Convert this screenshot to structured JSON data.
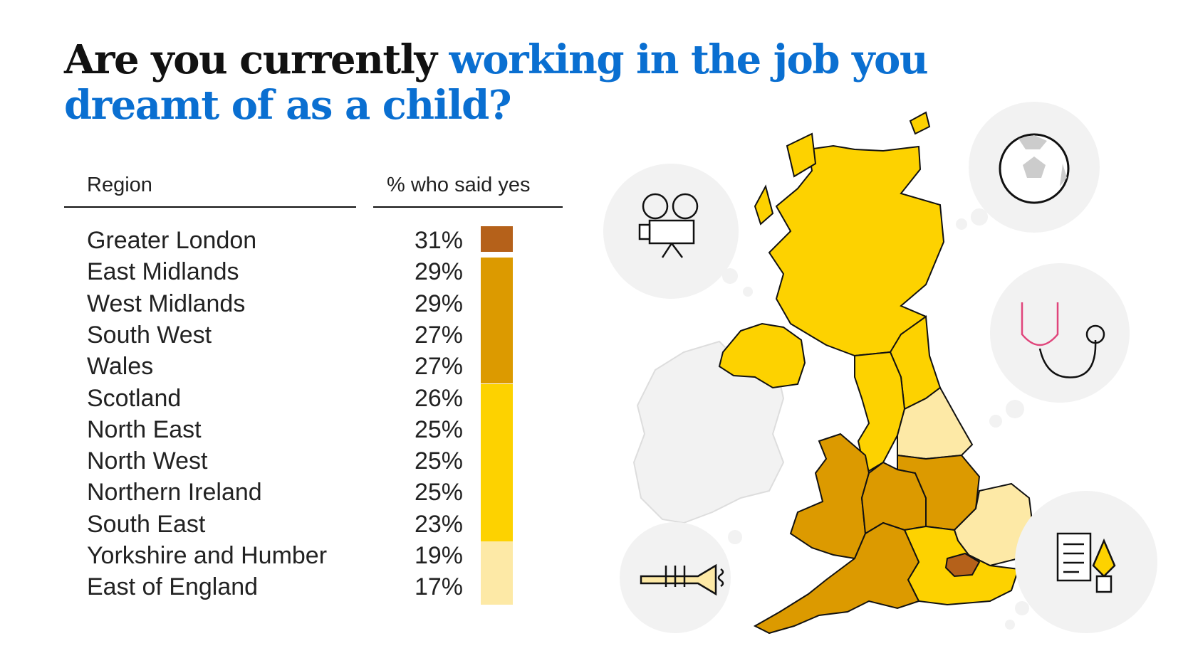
{
  "title": {
    "plain": "Are you currently",
    "highlight": "working in the job you dreamt of as a child?"
  },
  "table": {
    "col_region": "Region",
    "col_pct": "% who said yes"
  },
  "colors": {
    "band_31": "#b5611a",
    "band_27_29": "#dc9a00",
    "band_23_26": "#fdd200",
    "band_17_19": "#fde9a6",
    "title_accent": "#0a6fd1",
    "neighbour_land": "#f2f2f2"
  },
  "icons": [
    "film-projector-icon",
    "football-icon",
    "stethoscope-icon",
    "trumpet-icon",
    "scroll-and-pen-icon"
  ],
  "chart_data": {
    "type": "table",
    "columns": [
      "Region",
      "% who said yes"
    ],
    "rows": [
      {
        "region": "Greater London",
        "pct": "31%",
        "value": 31
      },
      {
        "region": "East Midlands",
        "pct": "29%",
        "value": 29
      },
      {
        "region": "West Midlands",
        "pct": "29%",
        "value": 29
      },
      {
        "region": "South West",
        "pct": "27%",
        "value": 27
      },
      {
        "region": "Wales",
        "pct": "27%",
        "value": 27
      },
      {
        "region": "Scotland",
        "pct": "26%",
        "value": 26
      },
      {
        "region": "North East",
        "pct": "25%",
        "value": 25
      },
      {
        "region": "North West",
        "pct": "25%",
        "value": 25
      },
      {
        "region": "Northern Ireland",
        "pct": "25%",
        "value": 25
      },
      {
        "region": "South East",
        "pct": "23%",
        "value": 23
      },
      {
        "region": "Yorkshire and Humber",
        "pct": "19%",
        "value": 19
      },
      {
        "region": "East of England",
        "pct": "17%",
        "value": 17
      }
    ]
  }
}
